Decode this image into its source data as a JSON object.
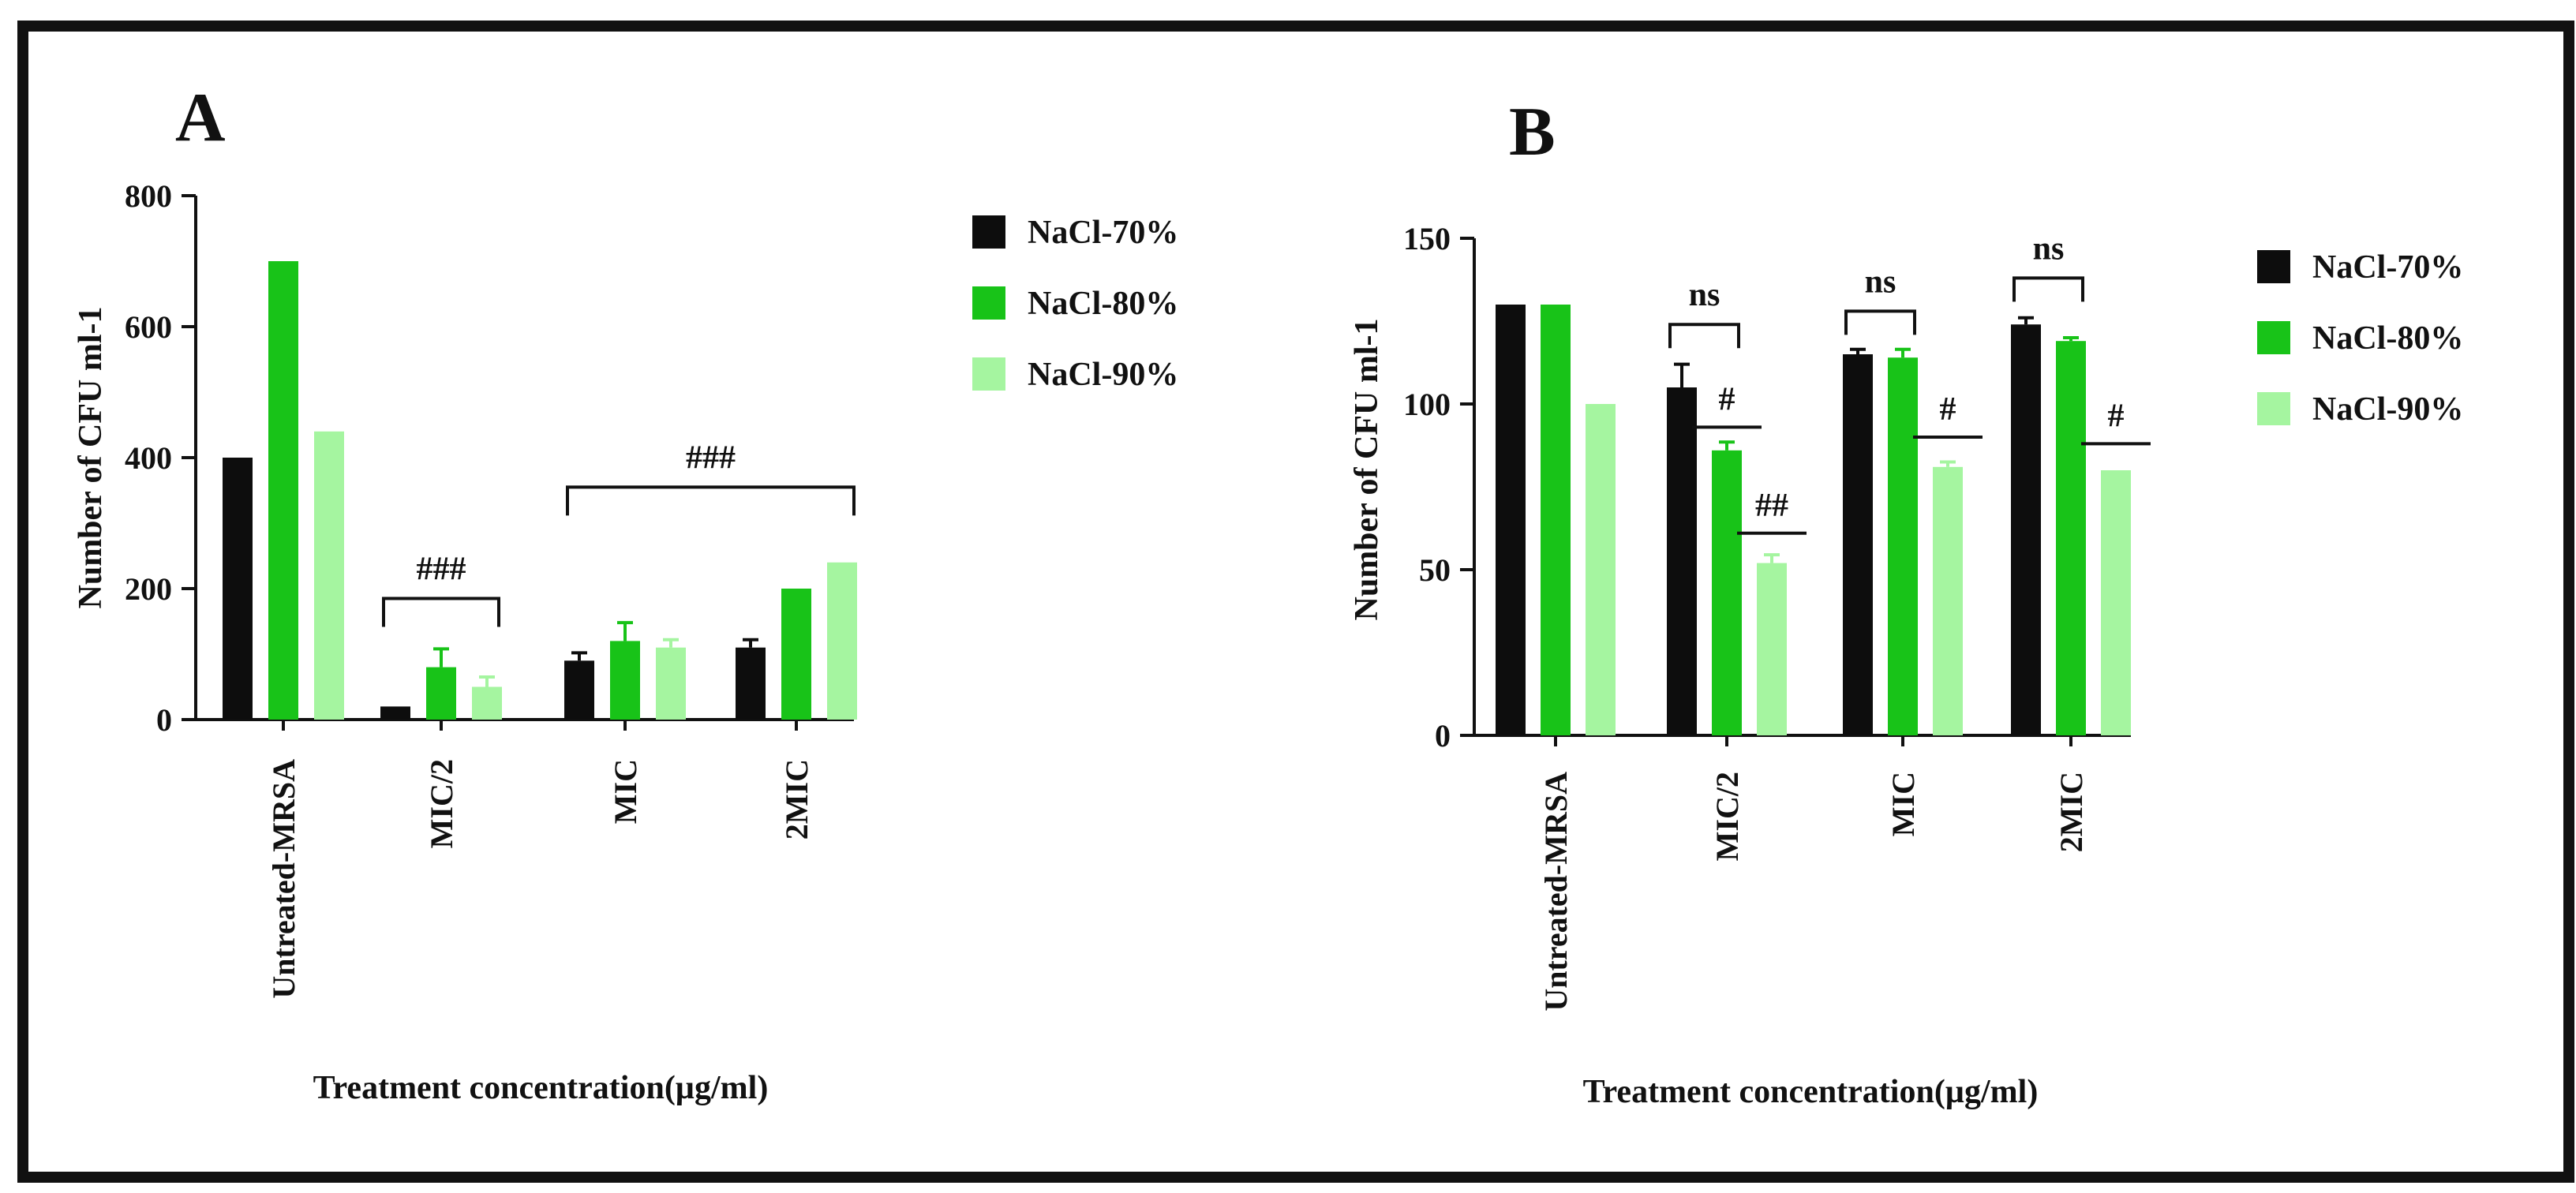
{
  "figure": {
    "border_color": "#111111",
    "series_colors": [
      "#0d0d0d",
      "#18c318",
      "#a5f5a0"
    ]
  },
  "chart_data": [
    {
      "type": "bar",
      "panel_label": "A",
      "ylabel": "Number of CFU ml-1",
      "xlabel": "Treatment concentration(µg/ml)",
      "ylim": [
        0,
        800
      ],
      "yticks": [
        "0",
        "200",
        "400",
        "600",
        "800"
      ],
      "categories": [
        "Untreated-MRSA",
        "MIC/2",
        "MIC",
        "2MIC"
      ],
      "series": [
        {
          "name": "NaCl-70%",
          "values": [
            400,
            20,
            90,
            110
          ],
          "errors": [
            0,
            0,
            12,
            12
          ]
        },
        {
          "name": "NaCl-80%",
          "values": [
            700,
            80,
            120,
            200
          ],
          "errors": [
            0,
            28,
            28,
            0
          ]
        },
        {
          "name": "NaCl-90%",
          "values": [
            440,
            50,
            110,
            240
          ],
          "errors": [
            0,
            15,
            12,
            0
          ]
        }
      ],
      "annotations": [
        {
          "text": "###",
          "type": "bracket",
          "from_category": 1,
          "to_category": 1,
          "level": 185
        },
        {
          "text": "###",
          "type": "bracket",
          "from_category": 2,
          "to_category": 3,
          "level": 355
        }
      ]
    },
    {
      "type": "bar",
      "panel_label": "B",
      "ylabel": "Number of CFU ml-1",
      "xlabel": "Treatment concentration(µg/ml)",
      "ylim": [
        0,
        150
      ],
      "yticks": [
        "0",
        "50",
        "100",
        "150"
      ],
      "categories": [
        "Untreated-MRSA",
        "MIC/2",
        "MIC",
        "2MIC"
      ],
      "series": [
        {
          "name": "NaCl-70%",
          "values": [
            130,
            105,
            115,
            124
          ],
          "errors": [
            0,
            7,
            1.5,
            2
          ]
        },
        {
          "name": "NaCl-80%",
          "values": [
            130,
            86,
            114,
            119
          ],
          "errors": [
            0,
            2.5,
            2.5,
            1
          ]
        },
        {
          "name": "NaCl-90%",
          "values": [
            100,
            52,
            81,
            80
          ],
          "errors": [
            0,
            2.5,
            1.5,
            0
          ]
        }
      ],
      "annotations": [
        {
          "text": "ns",
          "type": "bracket",
          "category": 1,
          "series": [
            0,
            1
          ],
          "level": 124
        },
        {
          "text": "#",
          "type": "line",
          "category": 1,
          "series": 1,
          "level": 93
        },
        {
          "text": "##",
          "type": "line",
          "category": 1,
          "series": 2,
          "level": 61
        },
        {
          "text": "ns",
          "type": "bracket",
          "category": 2,
          "series": [
            0,
            1
          ],
          "level": 128
        },
        {
          "text": "#",
          "type": "line",
          "category": 2,
          "series": 2,
          "level": 90
        },
        {
          "text": "ns",
          "type": "bracket",
          "category": 3,
          "series": [
            0,
            1
          ],
          "level": 138
        },
        {
          "text": "#",
          "type": "line",
          "category": 3,
          "series": 2,
          "level": 88
        }
      ]
    }
  ]
}
